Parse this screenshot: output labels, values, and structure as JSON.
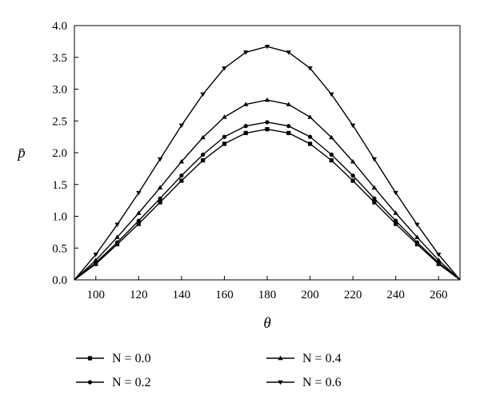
{
  "chart_data": {
    "type": "line",
    "title": "",
    "xlabel": "θ",
    "ylabel": "p̄",
    "xlim": [
      90,
      270
    ],
    "ylim": [
      0.0,
      4.0
    ],
    "x_ticks": [
      "100",
      "120",
      "140",
      "160",
      "180",
      "200",
      "220",
      "240",
      "260"
    ],
    "y_ticks": [
      "0.0",
      "0.5",
      "1.0",
      "1.5",
      "2.0",
      "2.5",
      "3.0",
      "3.5",
      "4.0"
    ],
    "grid": false,
    "legend_position": "bottom",
    "x": [
      90,
      100,
      110,
      120,
      130,
      140,
      150,
      160,
      170,
      180,
      190,
      200,
      210,
      220,
      230,
      240,
      250,
      260,
      270
    ],
    "series": [
      {
        "name": "N = 0.0",
        "marker": "square",
        "values": [
          0,
          0.25,
          0.56,
          0.88,
          1.22,
          1.56,
          1.88,
          2.14,
          2.31,
          2.37,
          2.31,
          2.14,
          1.88,
          1.56,
          1.22,
          0.88,
          0.56,
          0.25,
          0
        ]
      },
      {
        "name": "N = 0.2",
        "marker": "circle",
        "values": [
          0,
          0.27,
          0.59,
          0.93,
          1.28,
          1.64,
          1.97,
          2.25,
          2.42,
          2.48,
          2.42,
          2.25,
          1.97,
          1.64,
          1.28,
          0.93,
          0.59,
          0.27,
          0
        ]
      },
      {
        "name": "N = 0.4",
        "marker": "triangle-up",
        "values": [
          0,
          0.31,
          0.67,
          1.05,
          1.45,
          1.86,
          2.24,
          2.56,
          2.76,
          2.83,
          2.76,
          2.56,
          2.24,
          1.86,
          1.45,
          1.05,
          0.67,
          0.31,
          0
        ]
      },
      {
        "name": "N = 0.6",
        "marker": "triangle-down",
        "values": [
          0,
          0.4,
          0.87,
          1.37,
          1.9,
          2.43,
          2.92,
          3.33,
          3.58,
          3.67,
          3.58,
          3.33,
          2.92,
          2.43,
          1.9,
          1.37,
          0.87,
          0.4,
          0
        ]
      }
    ]
  }
}
